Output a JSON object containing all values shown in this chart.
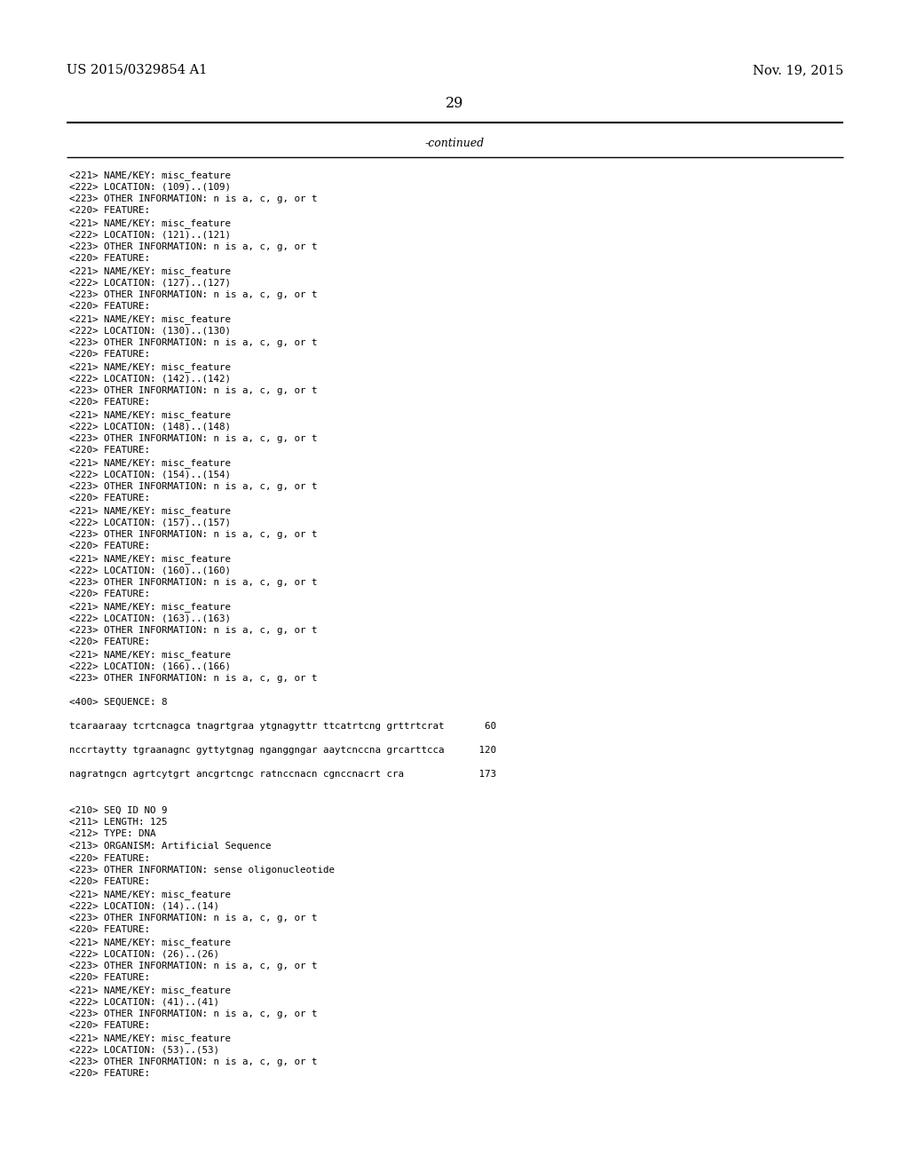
{
  "header_left": "US 2015/0329854 A1",
  "header_right": "Nov. 19, 2015",
  "page_number": "29",
  "continued_text": "-continued",
  "background_color": "#ffffff",
  "text_color": "#000000",
  "font_size_header": 10.5,
  "font_size_body": 8.5,
  "font_size_page": 11.5,
  "font_size_mono": 7.8,
  "lines": [
    "<221> NAME/KEY: misc_feature",
    "<222> LOCATION: (109)..(109)",
    "<223> OTHER INFORMATION: n is a, c, g, or t",
    "<220> FEATURE:",
    "<221> NAME/KEY: misc_feature",
    "<222> LOCATION: (121)..(121)",
    "<223> OTHER INFORMATION: n is a, c, g, or t",
    "<220> FEATURE:",
    "<221> NAME/KEY: misc_feature",
    "<222> LOCATION: (127)..(127)",
    "<223> OTHER INFORMATION: n is a, c, g, or t",
    "<220> FEATURE:",
    "<221> NAME/KEY: misc_feature",
    "<222> LOCATION: (130)..(130)",
    "<223> OTHER INFORMATION: n is a, c, g, or t",
    "<220> FEATURE:",
    "<221> NAME/KEY: misc_feature",
    "<222> LOCATION: (142)..(142)",
    "<223> OTHER INFORMATION: n is a, c, g, or t",
    "<220> FEATURE:",
    "<221> NAME/KEY: misc_feature",
    "<222> LOCATION: (148)..(148)",
    "<223> OTHER INFORMATION: n is a, c, g, or t",
    "<220> FEATURE:",
    "<221> NAME/KEY: misc_feature",
    "<222> LOCATION: (154)..(154)",
    "<223> OTHER INFORMATION: n is a, c, g, or t",
    "<220> FEATURE:",
    "<221> NAME/KEY: misc_feature",
    "<222> LOCATION: (157)..(157)",
    "<223> OTHER INFORMATION: n is a, c, g, or t",
    "<220> FEATURE:",
    "<221> NAME/KEY: misc_feature",
    "<222> LOCATION: (160)..(160)",
    "<223> OTHER INFORMATION: n is a, c, g, or t",
    "<220> FEATURE:",
    "<221> NAME/KEY: misc_feature",
    "<222> LOCATION: (163)..(163)",
    "<223> OTHER INFORMATION: n is a, c, g, or t",
    "<220> FEATURE:",
    "<221> NAME/KEY: misc_feature",
    "<222> LOCATION: (166)..(166)",
    "<223> OTHER INFORMATION: n is a, c, g, or t",
    "",
    "<400> SEQUENCE: 8",
    "",
    "tcaraaraay tcrtcnagca tnagrtgraa ytgnagyttr ttcatrtcng grttrtcrat       60",
    "",
    "nccrtaytty tgraanagnc gyttytgnag nganggngar aaytcnccna grcarttcca      120",
    "",
    "nagratngcn agrtcytgrt ancgrtcngc ratnccnacn cgnccnacrt cra             173",
    "",
    "",
    "<210> SEQ ID NO 9",
    "<211> LENGTH: 125",
    "<212> TYPE: DNA",
    "<213> ORGANISM: Artificial Sequence",
    "<220> FEATURE:",
    "<223> OTHER INFORMATION: sense oligonucleotide",
    "<220> FEATURE:",
    "<221> NAME/KEY: misc_feature",
    "<222> LOCATION: (14)..(14)",
    "<223> OTHER INFORMATION: n is a, c, g, or t",
    "<220> FEATURE:",
    "<221> NAME/KEY: misc_feature",
    "<222> LOCATION: (26)..(26)",
    "<223> OTHER INFORMATION: n is a, c, g, or t",
    "<220> FEATURE:",
    "<221> NAME/KEY: misc_feature",
    "<222> LOCATION: (41)..(41)",
    "<223> OTHER INFORMATION: n is a, c, g, or t",
    "<220> FEATURE:",
    "<221> NAME/KEY: misc_feature",
    "<222> LOCATION: (53)..(53)",
    "<223> OTHER INFORMATION: n is a, c, g, or t",
    "<220> FEATURE:"
  ]
}
